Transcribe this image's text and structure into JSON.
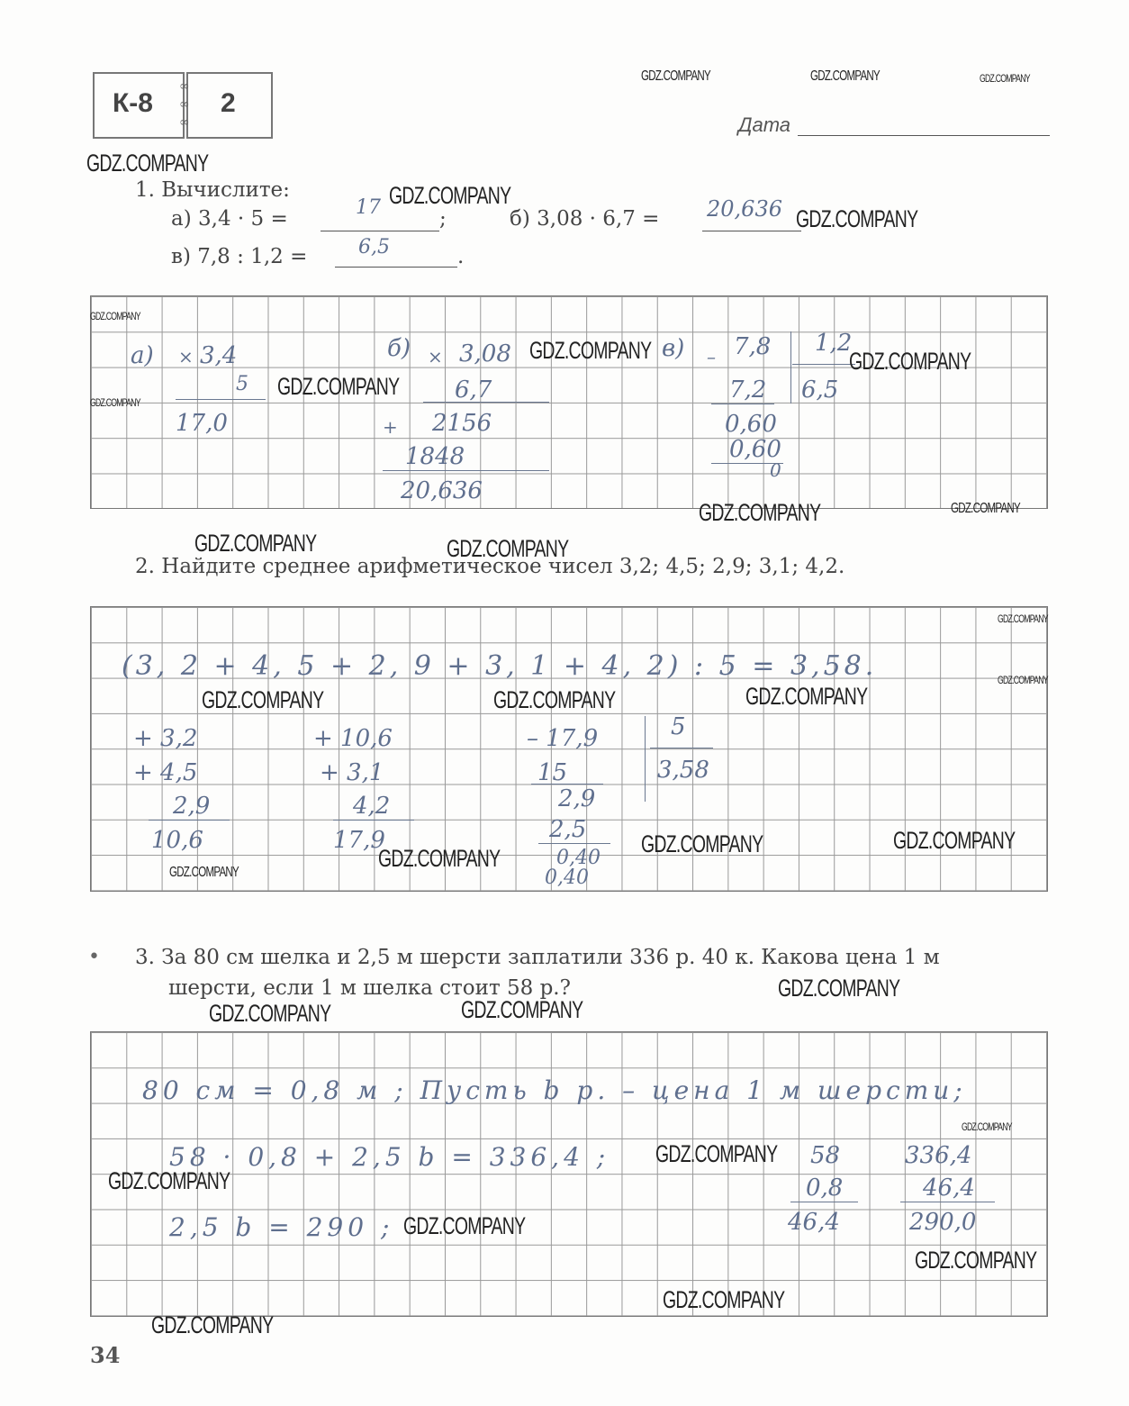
{
  "header": {
    "badge_left": "К-8",
    "badge_right": "2",
    "date_label": "Дата"
  },
  "watermark": "GDZ.COMPANY",
  "task1": {
    "title": "1. Вычислите:",
    "a_label": "а) 3,4 · 5 =",
    "a_answer": "17",
    "a_end": ";",
    "b_label": "б) 3,08 · 6,7 =",
    "b_answer": "20,636",
    "c_label": "в) 7,8 : 1,2 =",
    "c_answer": "6,5",
    "c_end": ".",
    "work": [
      "а)",
      "×",
      "3,4",
      "5",
      "17,0",
      "б)",
      "×",
      "3,08",
      "6,7",
      "+",
      "2156",
      "1848",
      "20,636",
      "в)",
      "–",
      "7,8",
      "1,2",
      "7,2",
      "6,5",
      "0,60",
      "0,60",
      "0"
    ]
  },
  "task2": {
    "title": "2. Найдите среднее арифметическое чисел 3,2; 4,5; 2,9; 3,1; 4,2.",
    "work": [
      "(3, 2 + 4, 5 + 2, 9 + 3, 1 + 4, 2) : 5 = 3,58.",
      "+ 3,2",
      "+ 4,5",
      "2,9",
      "10,6",
      "+ 10,6",
      "+ 3,1",
      "4,2",
      "17,9",
      "– 17,9",
      "15",
      "2,9",
      "2,5",
      "0,40",
      "0,40",
      "5",
      "3,58"
    ]
  },
  "task3": {
    "bullet": "•",
    "line1": "3. За 80 см шелка и 2,5 м шерсти заплатили 336 р. 40 к. Какова цена 1 м",
    "line2": "шерсти, если 1 м шелка стоит 58 р.?",
    "work": [
      "80 см = 0,8 м ; Пусть b р. – цена 1 м шерсти;",
      "58 · 0,8 + 2,5 b = 336,4 ;",
      "2,5 b = 290 ;",
      "58",
      "0,8",
      "46,4",
      "336,4",
      "46,4",
      "290,0"
    ]
  },
  "footer": {
    "page_number": "34"
  }
}
